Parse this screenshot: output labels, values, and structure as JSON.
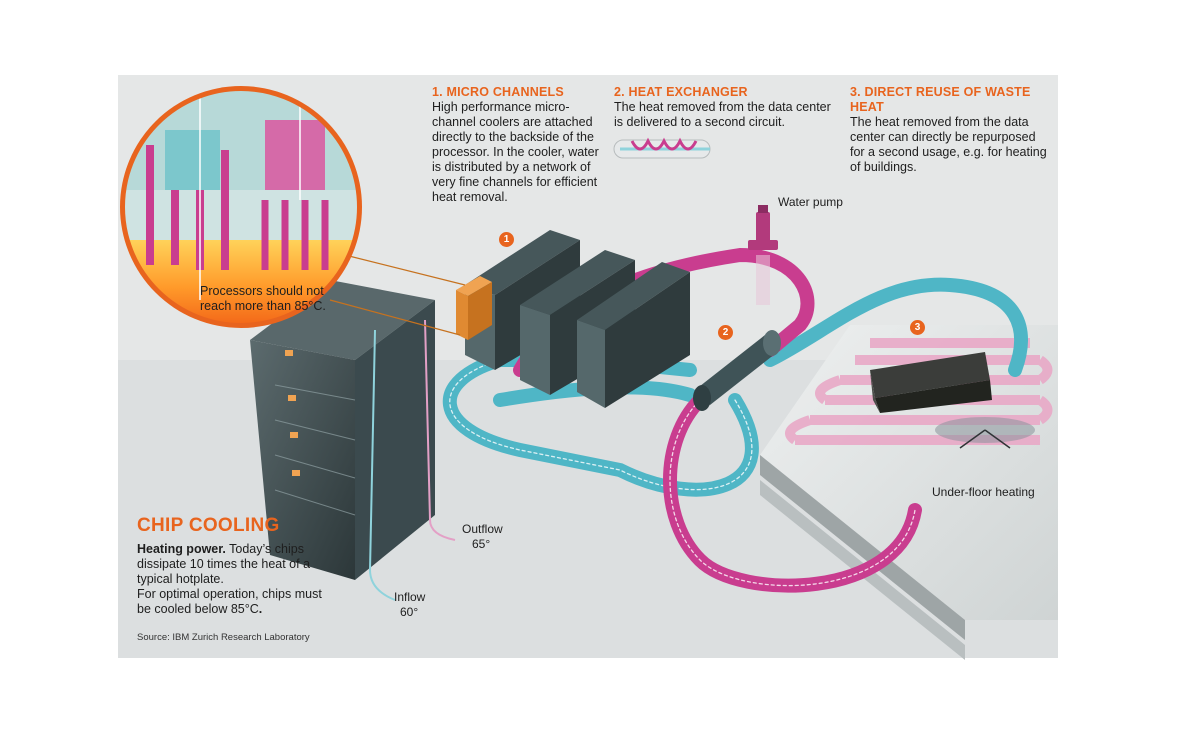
{
  "micro_channels": {
    "heading": "1. MICRO CHANNELS",
    "body": "High performance micro-channel coolers are attached directly to the backside of the processor. In the cooler, water is distributed by a network of very fine channels for efficient heat removal."
  },
  "heat_exchanger": {
    "heading": "2. HEAT EXCHANGER",
    "body": "The heat removed from the data center is delivered to a second circuit."
  },
  "direct_reuse": {
    "heading": "3. DIRECT REUSE OF WASTE HEAT",
    "body": "The heat removed from the data center can directly be repurposed for a second usage, e.g. for heating of buildings."
  },
  "labels": {
    "water_pump": "Water pump",
    "processors_note": "Processors should not reach more than 85°C.",
    "outflow": "Outflow",
    "outflow_temp": "65°",
    "inflow": "Inflow",
    "inflow_temp": "60°",
    "under_floor": "Under-floor heating"
  },
  "badges": [
    "1",
    "2",
    "3"
  ],
  "chip_cooling": {
    "title": "CHIP COOLING",
    "lead": "Heating power.",
    "line1": " Today’s chips dissipate 10 times the heat of a typical hotplate.",
    "line2": "For optimal operation, chips must be cooled below 85°C",
    "line2_end": "."
  },
  "source": "Source: IBM Zurich Research Laboratory",
  "colors": {
    "accent": "#e8641e",
    "hot_pipe": "#c93d8f",
    "cold_pipe": "#4fb6c6",
    "rack": "#3b4a4e"
  },
  "icons": [
    "heat-exchanger-icon",
    "water-pump-icon",
    "sofa-icon",
    "table-icon"
  ]
}
